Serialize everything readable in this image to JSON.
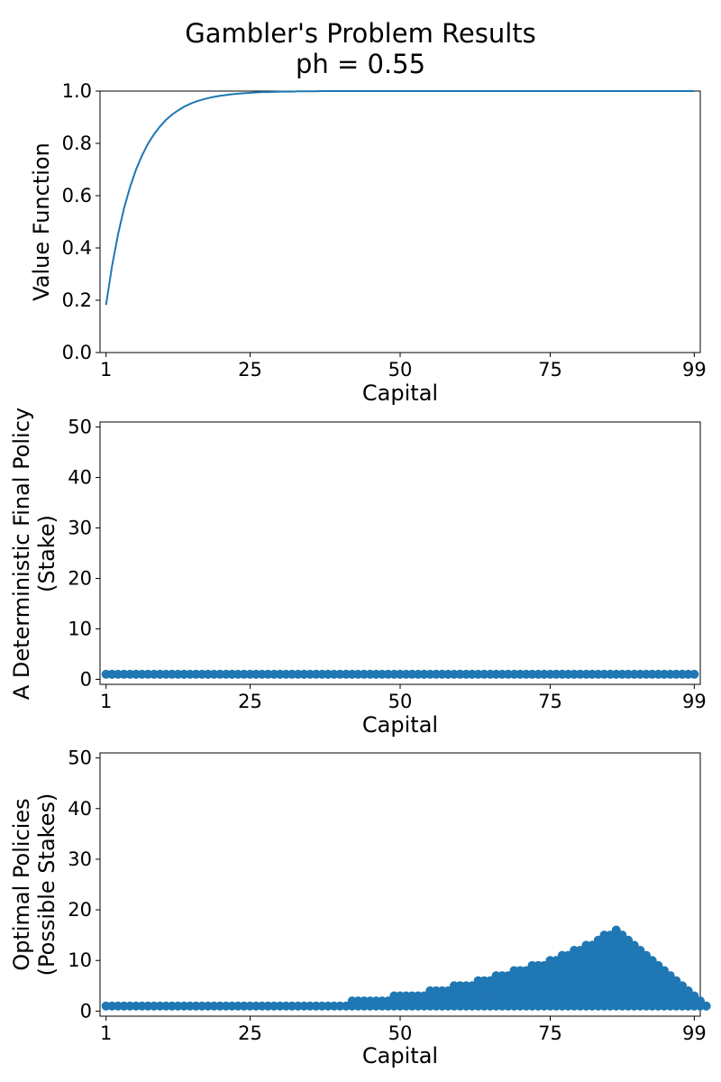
{
  "figure": {
    "title_line1": "Gambler's Problem Results",
    "title_line2": "ph = 0.55"
  },
  "chart_data": [
    {
      "type": "line",
      "xlabel": "Capital",
      "ylabel": "Value Function",
      "xlim": [
        0,
        100
      ],
      "ylim": [
        0,
        1
      ],
      "xticks": [
        1,
        25,
        50,
        75,
        99
      ],
      "yticks": [
        0.0,
        0.2,
        0.4,
        0.6,
        0.8,
        1.0
      ],
      "ytick_labels": [
        "0.0",
        "0.2",
        "0.4",
        "0.6",
        "0.8",
        "1.0"
      ],
      "color": "#1f77b4",
      "x_range": [
        1,
        99
      ],
      "values": [
        0.182,
        0.331,
        0.452,
        0.552,
        0.633,
        0.7,
        0.754,
        0.799,
        0.835,
        0.865,
        0.89,
        0.91,
        0.926,
        0.94,
        0.951,
        0.96,
        0.967,
        0.973,
        0.978,
        0.982,
        0.985,
        0.988,
        0.99,
        0.992,
        0.993,
        0.995,
        0.996,
        0.996,
        0.997,
        0.998,
        0.998,
        0.998,
        0.999,
        0.999,
        0.999,
        0.999,
        1.0,
        1.0,
        1.0,
        1.0,
        1.0,
        1.0,
        1.0,
        1.0,
        1.0,
        1.0,
        1.0,
        1.0,
        1.0,
        1.0,
        1.0,
        1.0,
        1.0,
        1.0,
        1.0,
        1.0,
        1.0,
        1.0,
        1.0,
        1.0,
        1.0,
        1.0,
        1.0,
        1.0,
        1.0,
        1.0,
        1.0,
        1.0,
        1.0,
        1.0,
        1.0,
        1.0,
        1.0,
        1.0,
        1.0,
        1.0,
        1.0,
        1.0,
        1.0,
        1.0,
        1.0,
        1.0,
        1.0,
        1.0,
        1.0,
        1.0,
        1.0,
        1.0,
        1.0,
        1.0,
        1.0,
        1.0,
        1.0,
        1.0,
        1.0,
        1.0,
        1.0,
        1.0,
        1.0
      ]
    },
    {
      "type": "scatter",
      "xlabel": "Capital",
      "ylabel_line1": "A Deterministic Final Policy",
      "ylabel_line2": "(Stake)",
      "xlim": [
        0,
        100
      ],
      "ylim": [
        -1,
        51
      ],
      "xticks": [
        1,
        25,
        50,
        75,
        99
      ],
      "yticks": [
        0,
        10,
        20,
        30,
        40,
        50
      ],
      "color": "#1f77b4",
      "x_range": [
        1,
        99
      ],
      "stake": 1
    },
    {
      "type": "scatter",
      "xlabel": "Capital",
      "ylabel_line1": "Optimal Policies",
      "ylabel_line2": "(Possible Stakes)",
      "xlim": [
        0,
        100
      ],
      "ylim": [
        -1,
        51
      ],
      "xticks": [
        1,
        25,
        50,
        75,
        99
      ],
      "yticks": [
        0,
        10,
        20,
        30,
        40,
        50
      ],
      "color": "#1f77b4",
      "x_range": [
        1,
        99
      ],
      "max_stake": [
        1,
        1,
        1,
        1,
        1,
        1,
        1,
        1,
        1,
        1,
        1,
        1,
        1,
        1,
        1,
        1,
        1,
        1,
        1,
        1,
        1,
        1,
        1,
        1,
        1,
        1,
        1,
        1,
        1,
        1,
        1,
        1,
        1,
        1,
        1,
        1,
        1,
        1,
        1,
        1,
        1,
        2,
        2,
        2,
        2,
        2,
        2,
        2,
        3,
        3,
        3,
        3,
        3,
        3,
        4,
        4,
        4,
        4,
        5,
        5,
        5,
        5,
        6,
        6,
        6,
        7,
        7,
        7,
        8,
        8,
        8,
        9,
        9,
        9,
        10,
        10,
        11,
        11,
        12,
        12,
        13,
        13,
        14,
        15,
        15,
        16,
        15,
        14,
        13,
        12,
        11,
        10,
        9,
        8,
        7,
        6,
        5,
        4,
        3,
        2,
        1
      ]
    }
  ]
}
